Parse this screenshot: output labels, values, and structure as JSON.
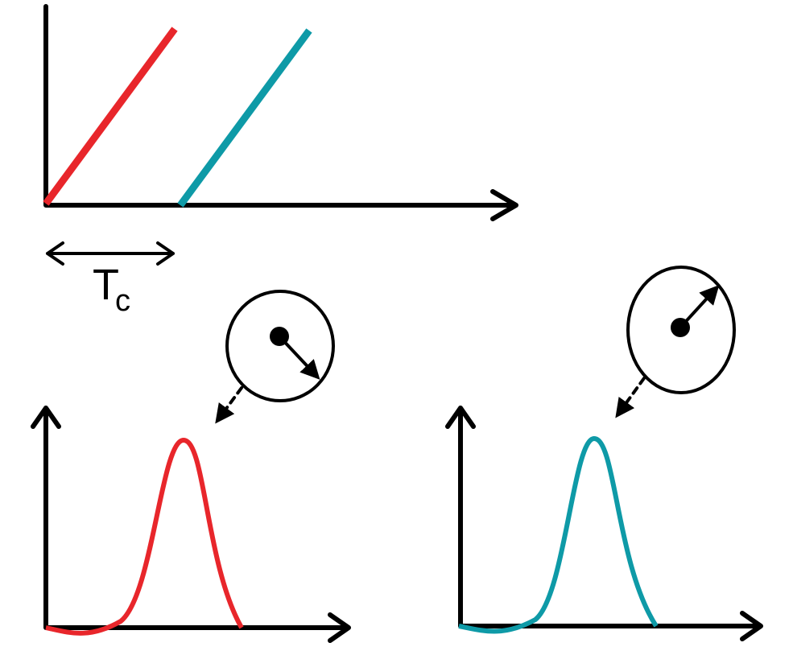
{
  "tc_label": {
    "main": "T",
    "subscript": "c"
  }
}
